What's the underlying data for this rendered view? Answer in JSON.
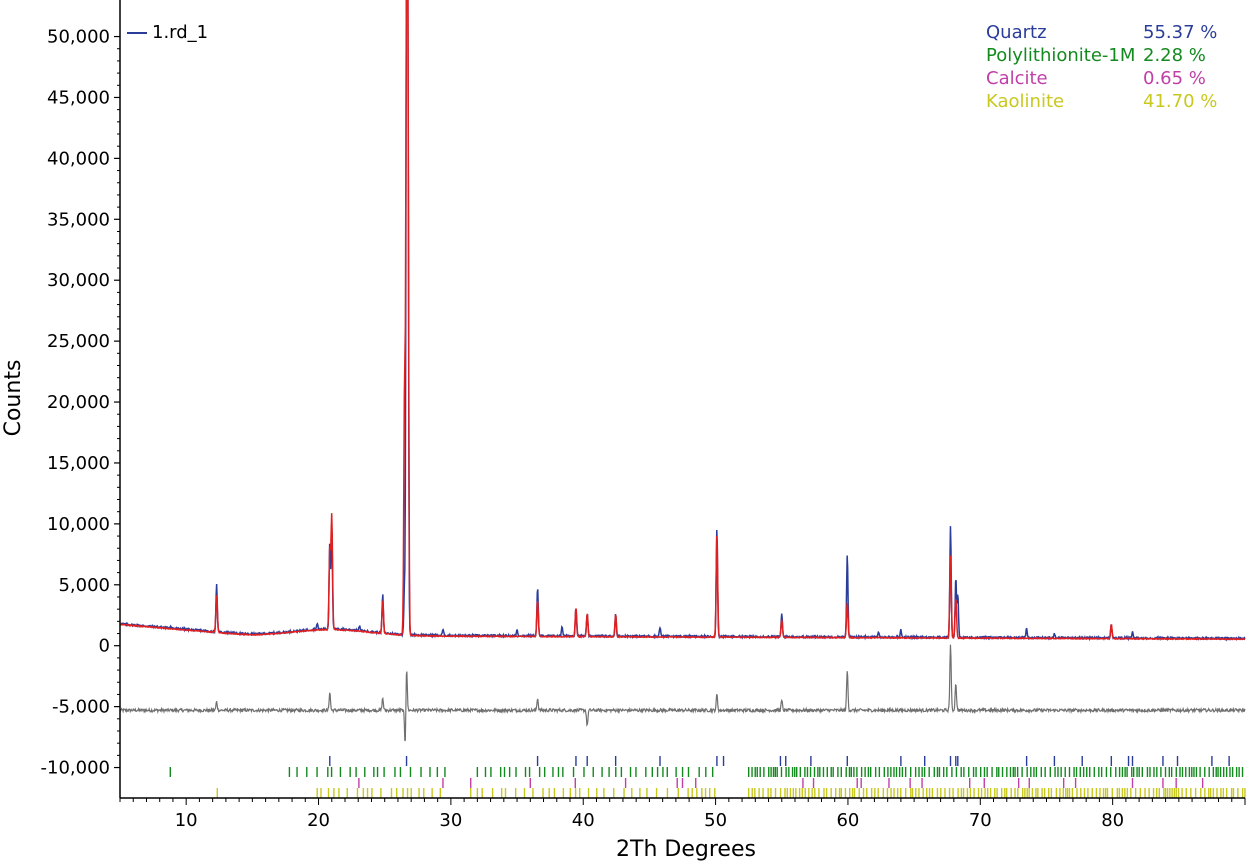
{
  "chart_data": {
    "type": "line",
    "xlabel": "2Th Degrees",
    "ylabel": "Counts",
    "xlim": [
      5,
      90
    ],
    "ylim": [
      -12500,
      53000
    ],
    "x_ticks": [
      10,
      20,
      30,
      40,
      50,
      60,
      70,
      80
    ],
    "x_tick_labels": [
      "10",
      "20",
      "30",
      "40",
      "50",
      "60",
      "70",
      "80"
    ],
    "y_ticks": [
      -10000,
      -5000,
      0,
      5000,
      10000,
      15000,
      20000,
      25000,
      30000,
      35000,
      40000,
      45000,
      50000
    ],
    "y_tick_labels": [
      "-10,000",
      "-5,000",
      "0",
      "5,000",
      "10,000",
      "15,000",
      "20,000",
      "25,000",
      "30,000",
      "35,000",
      "40,000",
      "45,000",
      "50,000"
    ],
    "legend": {
      "position": "top-left",
      "label": "1.rd_1",
      "color": "#2b3d9a"
    },
    "phases": [
      {
        "name": "Quartz",
        "percent": "55.37 %",
        "color": "#2b3d9a"
      },
      {
        "name": "Polylithionite-1M",
        "percent": "2.28 %",
        "color": "#138a1e"
      },
      {
        "name": "Calcite",
        "percent": "0.65 %",
        "color": "#c040a8"
      },
      {
        "name": "Kaolinite",
        "percent": "41.70 %",
        "color": "#c8c81e"
      }
    ],
    "series": [
      {
        "name": "1.rd_1",
        "role": "observed",
        "color": "#2b3d9a",
        "peaks": [
          [
            8.8,
            1600
          ],
          [
            12.3,
            5000
          ],
          [
            19.9,
            1800
          ],
          [
            20.85,
            8500
          ],
          [
            21.0,
            10000
          ],
          [
            23.1,
            1600
          ],
          [
            24.85,
            4200
          ],
          [
            26.5,
            5000
          ],
          [
            26.65,
            53000
          ],
          [
            26.75,
            47000
          ],
          [
            29.4,
            1300
          ],
          [
            35.0,
            1300
          ],
          [
            36.55,
            4800
          ],
          [
            38.4,
            1600
          ],
          [
            39.45,
            3200
          ],
          [
            40.3,
            2600
          ],
          [
            42.45,
            2600
          ],
          [
            45.8,
            1500
          ],
          [
            50.1,
            9700
          ],
          [
            55.0,
            2600
          ],
          [
            59.95,
            7500
          ],
          [
            62.3,
            1100
          ],
          [
            64.0,
            1300
          ],
          [
            67.75,
            9800
          ],
          [
            68.15,
            5600
          ],
          [
            68.3,
            4300
          ],
          [
            73.5,
            1400
          ],
          [
            75.6,
            1000
          ],
          [
            79.9,
            1700
          ],
          [
            81.5,
            1100
          ]
        ]
      },
      {
        "role": "calculated",
        "color": "#e02020",
        "peaks": [
          [
            12.3,
            4200
          ],
          [
            20.85,
            8000
          ],
          [
            21.0,
            10700
          ],
          [
            24.85,
            3800
          ],
          [
            26.5,
            21000
          ],
          [
            26.65,
            49500
          ],
          [
            26.75,
            46000
          ],
          [
            36.55,
            3800
          ],
          [
            39.45,
            3200
          ],
          [
            40.3,
            2700
          ],
          [
            42.45,
            2600
          ],
          [
            50.1,
            9200
          ],
          [
            55.0,
            2200
          ],
          [
            59.95,
            3600
          ],
          [
            67.75,
            7500
          ],
          [
            68.15,
            4000
          ],
          [
            79.9,
            1800
          ]
        ]
      },
      {
        "role": "difference",
        "color": "#707070",
        "baseline": -5300,
        "features": [
          [
            12.3,
            -4600
          ],
          [
            20.85,
            -3800
          ],
          [
            24.85,
            -4300
          ],
          [
            26.55,
            -8400
          ],
          [
            26.65,
            -1500
          ],
          [
            36.55,
            -4300
          ],
          [
            40.3,
            -6600
          ],
          [
            50.1,
            -4000
          ],
          [
            55.0,
            -4500
          ],
          [
            59.95,
            -2000
          ],
          [
            67.75,
            200
          ],
          [
            68.15,
            -3000
          ]
        ]
      }
    ],
    "reflection_markers": [
      {
        "phase": "Quartz",
        "color": "#2b3d9a",
        "positions": [
          20.85,
          26.65,
          36.55,
          39.45,
          40.3,
          42.45,
          45.8,
          50.1,
          50.6,
          54.9,
          55.3,
          57.2,
          59.95,
          64.0,
          65.8,
          67.75,
          68.15,
          68.3,
          73.5,
          75.6,
          77.7,
          79.9,
          81.2,
          81.5,
          83.8,
          84.9,
          87.5,
          88.8
        ]
      },
      {
        "phase": "Polylithionite-1M",
        "color": "#138a1e",
        "density": "dense",
        "ranges": [
          [
            8.8,
            8.8
          ],
          [
            17.8,
            30.0
          ],
          [
            32.0,
            50.0
          ],
          [
            52.5,
            90.0
          ]
        ]
      },
      {
        "phase": "Calcite",
        "color": "#c040a8",
        "positions": [
          23.05,
          29.4,
          31.5,
          36.0,
          39.4,
          43.2,
          47.1,
          47.5,
          48.5,
          56.6,
          57.4,
          60.7,
          61.0,
          63.1,
          64.7,
          65.6,
          69.2,
          70.3,
          72.9,
          73.7,
          76.3,
          77.2,
          81.5,
          83.8,
          84.8,
          86.8
        ]
      },
      {
        "phase": "Kaolinite",
        "color": "#c8c81e",
        "density": "dense",
        "ranges": [
          [
            12.35,
            12.35
          ],
          [
            19.9,
            30.0
          ],
          [
            31.5,
            50.0
          ],
          [
            52.5,
            90.0
          ]
        ]
      }
    ]
  }
}
